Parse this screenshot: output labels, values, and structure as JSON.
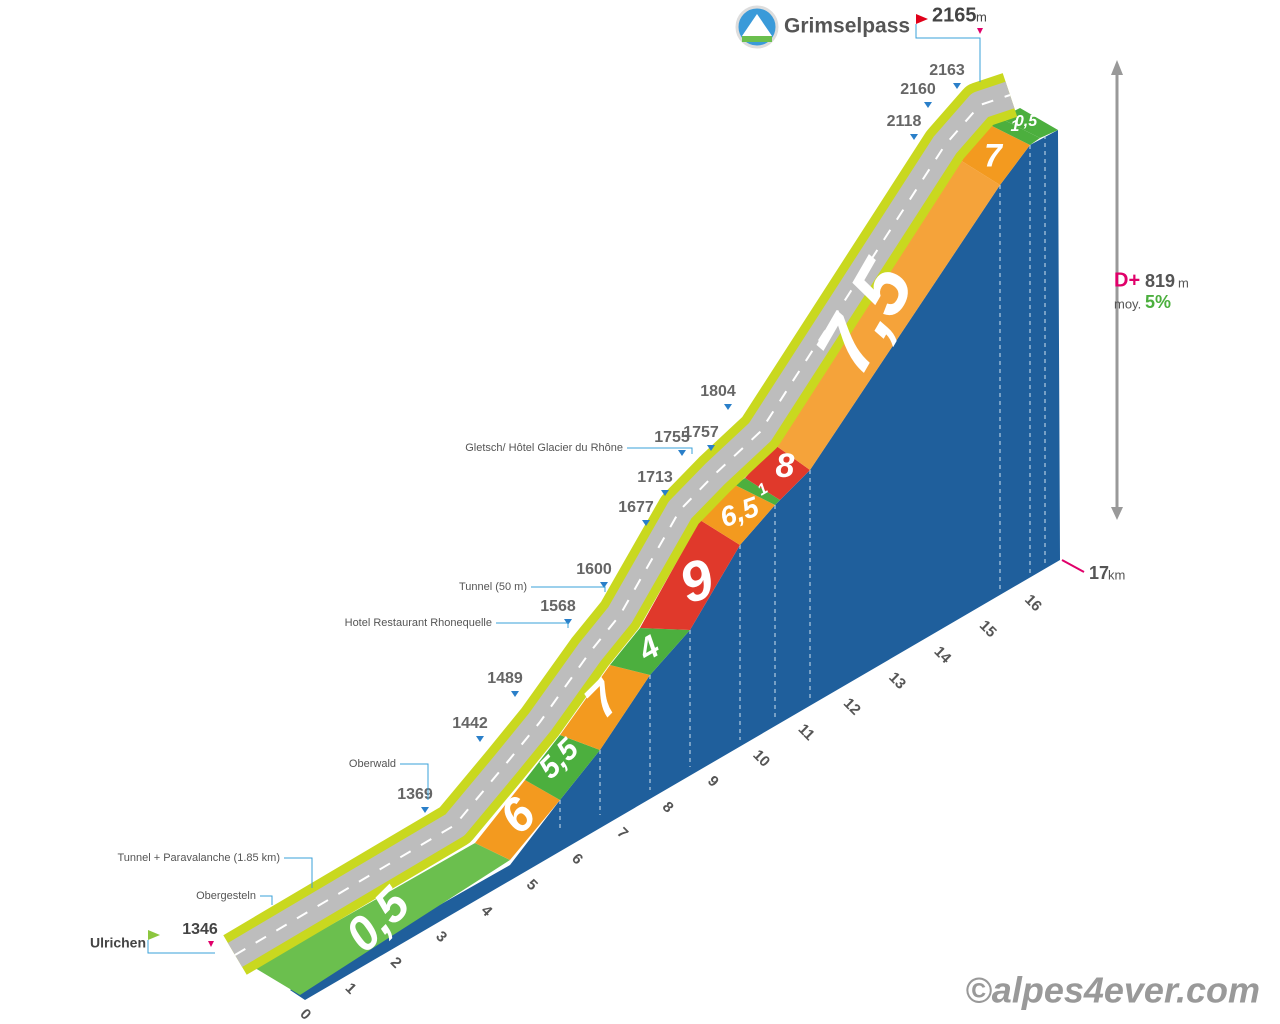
{
  "summit": {
    "name": "Grimselpass",
    "elevation": "2165",
    "unit": "m"
  },
  "start": {
    "name": "Ulrichen",
    "elevation": "1346"
  },
  "stats": {
    "gain_label": "D+",
    "gain": "819",
    "gain_unit": "m",
    "avg_label": "moy.",
    "avg": "5%"
  },
  "distance": {
    "value": "17",
    "unit": "km"
  },
  "elevations": [
    "1369",
    "1442",
    "1489",
    "1568",
    "1600",
    "1677",
    "1713",
    "1755",
    "1757",
    "1804",
    "2118",
    "2160",
    "2163"
  ],
  "places": [
    "Tunnel + Paravalanche (1.85 km)",
    "Obergesteln",
    "Oberwald",
    "Hotel Restaurant Rhonequelle",
    "Tunnel (50 m)",
    "Gletsch/ Hôtel Glacier du Rhône"
  ],
  "gradients": [
    "0,5",
    "6",
    "5,5",
    "7",
    "4",
    "9",
    "6,5",
    "1",
    "8",
    "7,5",
    "7",
    "1",
    "0,5"
  ],
  "km_ticks": [
    "0",
    "1",
    "2",
    "3",
    "4",
    "5",
    "6",
    "7",
    "8",
    "9",
    "10",
    "11",
    "12",
    "13",
    "14",
    "15",
    "16"
  ],
  "credit": "©alpes4ever.com"
}
